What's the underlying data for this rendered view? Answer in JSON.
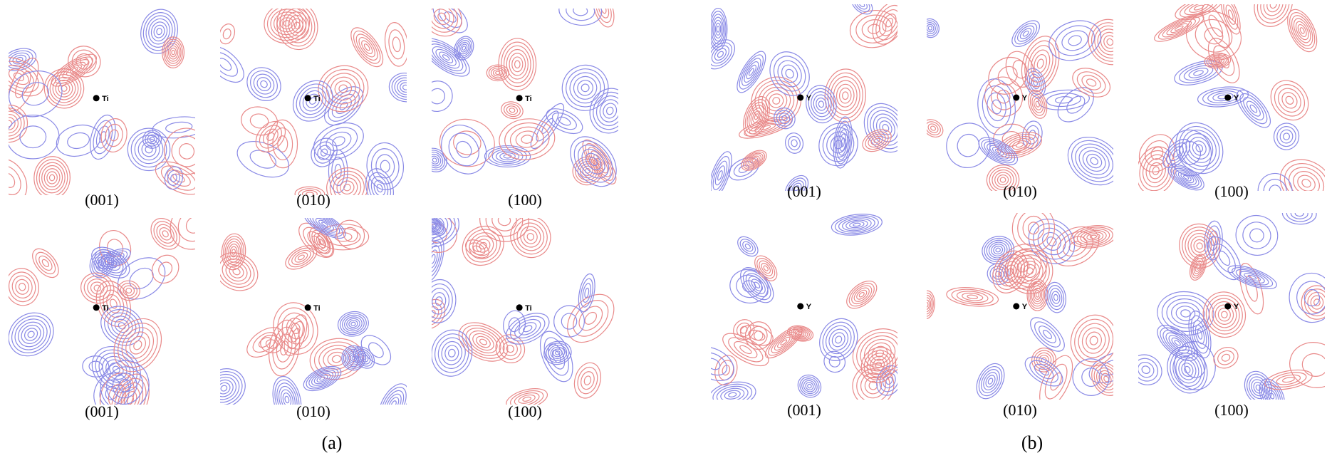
{
  "figure": {
    "panels": [
      {
        "caption": "(a)",
        "plots": [
          {
            "plane": "(001)",
            "atom": "Ti"
          },
          {
            "plane": "(010)",
            "atom": "Ti"
          },
          {
            "plane": "(100)",
            "atom": "Ti"
          },
          {
            "plane": "(001)",
            "atom": "Ti"
          },
          {
            "plane": "(010)",
            "atom": "Ti"
          },
          {
            "plane": "(100)",
            "atom": "Ti"
          }
        ]
      },
      {
        "caption": "(b)",
        "plots": [
          {
            "plane": "(001)",
            "atom": "Y"
          },
          {
            "plane": "(010)",
            "atom": "Y"
          },
          {
            "plane": "(100)",
            "atom": "Y"
          },
          {
            "plane": "(001)",
            "atom": "Y"
          },
          {
            "plane": "(010)",
            "atom": "Y"
          },
          {
            "plane": "(100)",
            "atom": "Y"
          }
        ]
      }
    ]
  }
}
